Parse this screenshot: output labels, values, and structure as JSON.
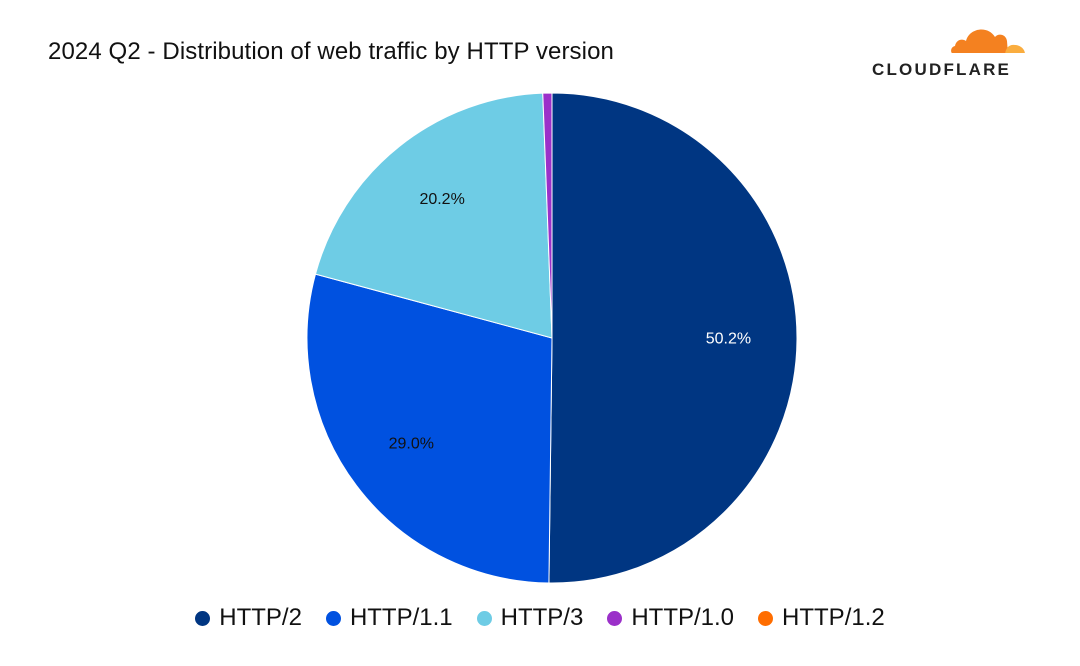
{
  "header": {
    "title": "2024 Q2 - Distribution of web traffic by HTTP version",
    "brand": "CLOUDFLARE",
    "brand_icon": "cloud-logo-icon"
  },
  "colors": {
    "brand_orange": "#f48120",
    "brand_orange_light": "#faad3f"
  },
  "chart_data": {
    "type": "pie",
    "title": "2024 Q2 - Distribution of web traffic by HTTP version",
    "series": [
      {
        "name": "HTTP/2",
        "value": 50.2,
        "label": "50.2%",
        "color": "#003682",
        "label_color": "#ffffff"
      },
      {
        "name": "HTTP/1.1",
        "value": 29.0,
        "label": "29.0%",
        "color": "#0051e0",
        "label_color": "#111111"
      },
      {
        "name": "HTTP/3",
        "value": 20.2,
        "label": "20.2%",
        "color": "#6ecce5",
        "label_color": "#111111"
      },
      {
        "name": "HTTP/1.0",
        "value": 0.6,
        "label": "",
        "color": "#9b30c9",
        "label_color": "#111111"
      },
      {
        "name": "HTTP/1.2",
        "value": 0.0,
        "label": "",
        "color": "#ff6d00",
        "label_color": "#111111"
      }
    ],
    "direction": "clockwise",
    "start_angle": "12 o'clock",
    "legend_position": "bottom"
  }
}
